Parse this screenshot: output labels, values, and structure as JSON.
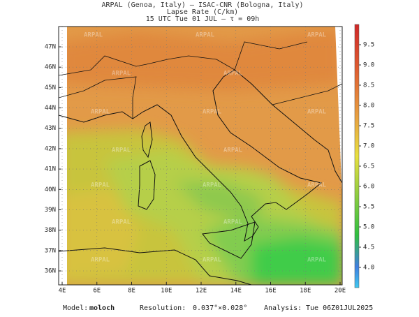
{
  "header": {
    "line1": "ARPAL (Genoa, Italy)  –  ISAC-CNR (Bologna, Italy)",
    "line2": "Lapse Rate (C/km)",
    "line3": "15 UTC Tue 01 JUL  –  τ = 09h"
  },
  "watermark": "ARPAL",
  "map": {
    "lat_labels": [
      {
        "value": 47,
        "label": "47N"
      },
      {
        "value": 46,
        "label": "46N"
      },
      {
        "value": 45,
        "label": "45N"
      },
      {
        "value": 44,
        "label": "44N"
      },
      {
        "value": 43,
        "label": "43N"
      },
      {
        "value": 42,
        "label": "42N"
      },
      {
        "value": 41,
        "label": "41N"
      },
      {
        "value": 40,
        "label": "40N"
      },
      {
        "value": 39,
        "label": "39N"
      },
      {
        "value": 38,
        "label": "38N"
      },
      {
        "value": 37,
        "label": "37N"
      },
      {
        "value": 36,
        "label": "36N"
      }
    ],
    "lon_labels": [
      {
        "value": 4,
        "label": "4E"
      },
      {
        "value": 6,
        "label": "6E"
      },
      {
        "value": 8,
        "label": "8E"
      },
      {
        "value": 10,
        "label": "10E"
      },
      {
        "value": 12,
        "label": "12E"
      },
      {
        "value": 14,
        "label": "14E"
      },
      {
        "value": 16,
        "label": "16E"
      },
      {
        "value": 18,
        "label": "18E"
      },
      {
        "value": 20,
        "label": "20E"
      }
    ]
  },
  "colorbar": {
    "range": [
      3.5,
      10
    ],
    "ticks": [
      {
        "value": 4,
        "label": "4.0"
      },
      {
        "value": 4.5,
        "label": "4.5"
      },
      {
        "value": 5,
        "label": "5.0"
      },
      {
        "value": 5.5,
        "label": "5.5"
      },
      {
        "value": 6,
        "label": "6.0"
      },
      {
        "value": 6.5,
        "label": "6.5"
      },
      {
        "value": 7,
        "label": "7.0"
      },
      {
        "value": 7.5,
        "label": "7.5"
      },
      {
        "value": 8,
        "label": "8.0"
      },
      {
        "value": 8.5,
        "label": "8.5"
      },
      {
        "value": 9,
        "label": "9.0"
      },
      {
        "value": 9.5,
        "label": "9.5"
      }
    ]
  },
  "footer": {
    "model_label": "Model:",
    "model": "moloch",
    "resolution_label": "Resolution:",
    "resolution": "0.037°×0.028°",
    "analysis_label": "Analysis:",
    "analysis": "Tue 06Z01JUL2025"
  }
}
